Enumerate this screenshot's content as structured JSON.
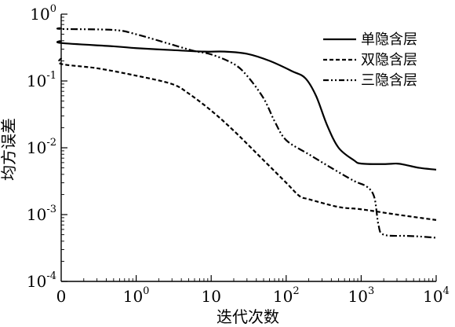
{
  "chart_data": {
    "type": "line",
    "title": "",
    "xlabel": "迭代次数",
    "ylabel": "均方误差",
    "x_scale": "log-with-zero",
    "y_scale": "log",
    "x_ticks": [
      {
        "value": 0,
        "base": "0",
        "exp": ""
      },
      {
        "value": 1,
        "base": "10",
        "exp": "0"
      },
      {
        "value": 10,
        "base": "10",
        "exp": ""
      },
      {
        "value": 100,
        "base": "10",
        "exp": "2"
      },
      {
        "value": 1000,
        "base": "10",
        "exp": "3"
      },
      {
        "value": 10000,
        "base": "10",
        "exp": "4"
      }
    ],
    "y_ticks": [
      {
        "value": 0.0001,
        "base": "10",
        "exp": "-4"
      },
      {
        "value": 0.001,
        "base": "10",
        "exp": "-3"
      },
      {
        "value": 0.01,
        "base": "10",
        "exp": "-2"
      },
      {
        "value": 0.1,
        "base": "10",
        "exp": "-1"
      },
      {
        "value": 1,
        "base": "10",
        "exp": "0"
      }
    ],
    "ylim": [
      0.0001,
      1
    ],
    "xlim": [
      0,
      10000
    ],
    "grid": false,
    "legend_position": "top-right",
    "series": [
      {
        "name": "单隐含层",
        "dash": "solid",
        "points": [
          [
            0,
            0.4
          ],
          [
            0.1,
            0.37
          ],
          [
            0.5,
            0.33
          ],
          [
            1,
            0.31
          ],
          [
            3,
            0.29
          ],
          [
            8,
            0.275
          ],
          [
            15,
            0.275
          ],
          [
            30,
            0.255
          ],
          [
            60,
            0.2
          ],
          [
            120,
            0.14
          ],
          [
            180,
            0.11
          ],
          [
            250,
            0.06
          ],
          [
            350,
            0.022
          ],
          [
            500,
            0.01
          ],
          [
            800,
            0.0065
          ],
          [
            1000,
            0.0058
          ],
          [
            2000,
            0.0057
          ],
          [
            3000,
            0.0058
          ],
          [
            4000,
            0.0055
          ],
          [
            6000,
            0.005
          ],
          [
            10000,
            0.0047
          ]
        ]
      },
      {
        "name": "双隐含层",
        "dash": "dashed",
        "points": [
          [
            0,
            0.22
          ],
          [
            0.1,
            0.18
          ],
          [
            0.3,
            0.155
          ],
          [
            1,
            0.12
          ],
          [
            3,
            0.09
          ],
          [
            5,
            0.065
          ],
          [
            10,
            0.036
          ],
          [
            20,
            0.018
          ],
          [
            50,
            0.0065
          ],
          [
            100,
            0.003
          ],
          [
            150,
            0.0019
          ],
          [
            200,
            0.0017
          ],
          [
            500,
            0.0013
          ],
          [
            1000,
            0.0012
          ],
          [
            3000,
            0.001
          ],
          [
            10000,
            0.00083
          ]
        ]
      },
      {
        "name": "三隐含层",
        "dash": "dashdotdot",
        "points": [
          [
            0,
            0.62
          ],
          [
            0.1,
            0.6
          ],
          [
            0.5,
            0.58
          ],
          [
            1,
            0.5
          ],
          [
            3,
            0.35
          ],
          [
            6,
            0.28
          ],
          [
            10,
            0.25
          ],
          [
            20,
            0.18
          ],
          [
            30,
            0.12
          ],
          [
            50,
            0.055
          ],
          [
            70,
            0.025
          ],
          [
            100,
            0.013
          ],
          [
            200,
            0.008
          ],
          [
            400,
            0.005
          ],
          [
            800,
            0.0032
          ],
          [
            1200,
            0.0026
          ],
          [
            1500,
            0.0018
          ],
          [
            1700,
            0.0007
          ],
          [
            2000,
            0.0005
          ],
          [
            4000,
            0.00048
          ],
          [
            6000,
            0.00047
          ],
          [
            10000,
            0.00045
          ]
        ]
      }
    ]
  }
}
